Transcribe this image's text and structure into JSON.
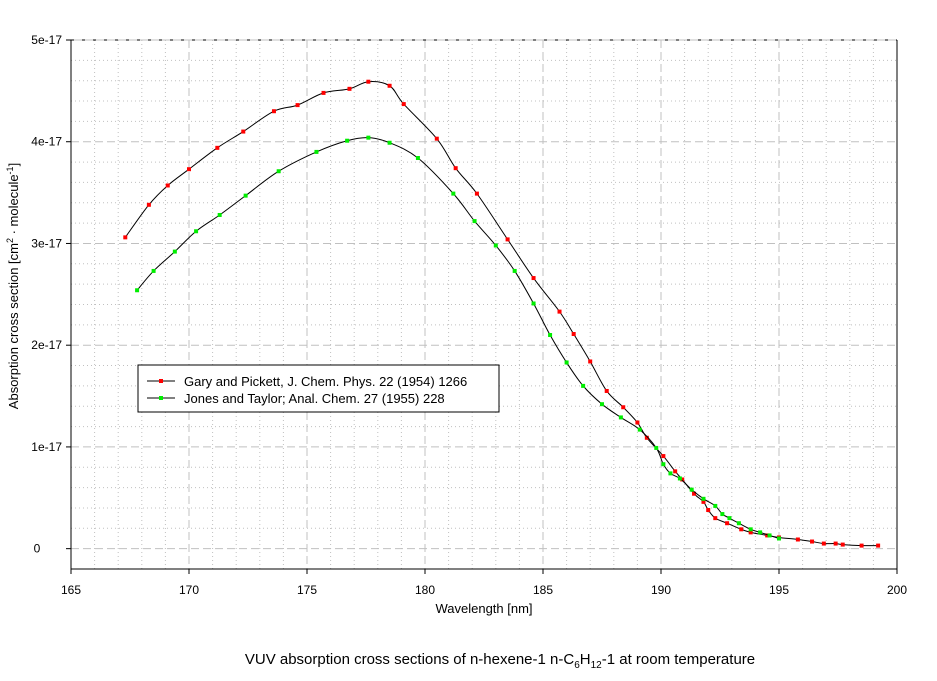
{
  "chart_data": {
    "type": "line",
    "title_parts": [
      "VUV absorption cross sections of n-hexene-1 n-C",
      "6",
      "H",
      "12",
      "-1 at room temperature"
    ],
    "xlabel": "Wavelength [nm]",
    "ylabel_parts": [
      "Absorption cross section [cm",
      "2",
      " · molecule",
      "-1",
      "]"
    ],
    "xlim": [
      165,
      200
    ],
    "ylim": [
      -2e-18,
      5e-17
    ],
    "x_ticks": [
      165,
      170,
      175,
      180,
      185,
      190,
      195,
      200
    ],
    "x_tick_labels": [
      "165",
      "170",
      "175",
      "180",
      "185",
      "190",
      "195",
      "200"
    ],
    "y_ticks": [
      0,
      1e-17,
      2e-17,
      3e-17,
      4e-17,
      5e-17
    ],
    "y_tick_labels": [
      "0",
      "1e-17",
      "2e-17",
      "3e-17",
      "4e-17",
      "5e-17"
    ],
    "grid": true,
    "legend_position": "center-left",
    "series": [
      {
        "name": "Gary and Pickett, J. Chem. Phys. 22 (1954) 1266",
        "color": "#ff0000",
        "x": [
          167.3,
          168.3,
          169.1,
          170.0,
          171.2,
          172.3,
          173.6,
          174.6,
          175.7,
          176.8,
          177.6,
          178.5,
          179.1,
          180.5,
          181.3,
          182.2,
          183.5,
          184.6,
          185.7,
          186.3,
          187.0,
          187.7,
          188.4,
          189.0,
          189.4,
          190.1,
          190.6,
          190.9,
          191.4,
          191.8,
          192.0,
          192.3,
          192.8,
          193.4,
          193.8,
          194.5,
          195.0,
          195.8,
          196.4,
          196.9,
          197.4,
          197.7,
          198.5,
          199.2
        ],
        "y": [
          3.06e-17,
          3.38e-17,
          3.57e-17,
          3.73e-17,
          3.94e-17,
          4.1e-17,
          4.3e-17,
          4.36e-17,
          4.48e-17,
          4.52e-17,
          4.59e-17,
          4.55e-17,
          4.37e-17,
          4.03e-17,
          3.74e-17,
          3.49e-17,
          3.04e-17,
          2.66e-17,
          2.33e-17,
          2.11e-17,
          1.84e-17,
          1.55e-17,
          1.39e-17,
          1.24e-17,
          1.09e-17,
          9.1e-18,
          7.6e-18,
          6.8e-18,
          5.4e-18,
          4.6e-18,
          3.8e-18,
          3e-18,
          2.5e-18,
          1.9e-18,
          1.6e-18,
          1.3e-18,
          1.1e-18,
          9e-19,
          7e-19,
          5e-19,
          5e-19,
          4e-19,
          3e-19,
          3e-19
        ]
      },
      {
        "name": "Jones and Taylor; Anal. Chem. 27 (1955) 228",
        "color": "#00ee00",
        "x": [
          167.8,
          168.5,
          169.4,
          170.3,
          171.3,
          172.4,
          173.8,
          175.4,
          176.7,
          177.6,
          178.5,
          179.7,
          181.2,
          182.1,
          183.0,
          183.8,
          184.6,
          185.3,
          186.0,
          186.7,
          187.5,
          188.3,
          189.1,
          189.8,
          190.1,
          190.4,
          190.8,
          191.3,
          191.8,
          192.3,
          192.6,
          192.9,
          193.3,
          193.8,
          194.2,
          194.6,
          195.0
        ],
        "y": [
          2.54e-17,
          2.73e-17,
          2.92e-17,
          3.12e-17,
          3.28e-17,
          3.47e-17,
          3.71e-17,
          3.9e-17,
          4.01e-17,
          4.04e-17,
          3.99e-17,
          3.84e-17,
          3.49e-17,
          3.22e-17,
          2.98e-17,
          2.73e-17,
          2.41e-17,
          2.1e-17,
          1.83e-17,
          1.6e-17,
          1.42e-17,
          1.29e-17,
          1.17e-17,
          9.9e-18,
          8.3e-18,
          7.4e-18,
          6.9e-18,
          5.8e-18,
          4.9e-18,
          4.2e-18,
          3.4e-18,
          3e-18,
          2.5e-18,
          1.9e-18,
          1.6e-18,
          1.3e-18,
          1e-18
        ]
      }
    ]
  }
}
